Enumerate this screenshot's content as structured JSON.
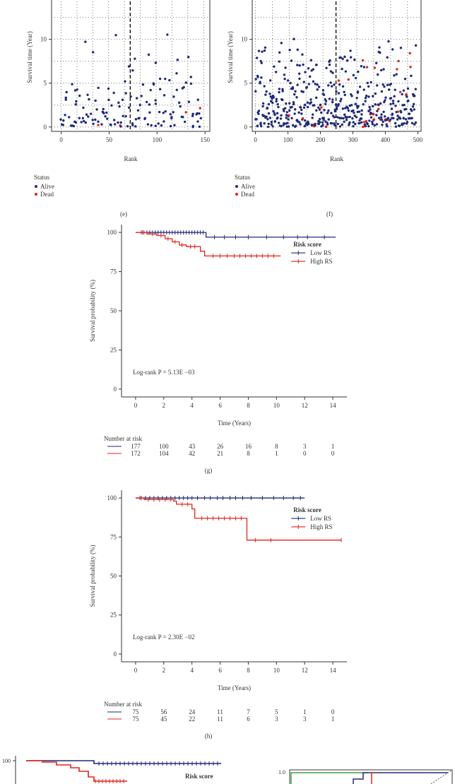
{
  "colors": {
    "low": "#1f2a78",
    "high": "#e0251b",
    "alive": "#1f2a78",
    "dead": "#e0251b",
    "roc_green": "#3aa043"
  },
  "chart_data": [
    {
      "id": "e",
      "type": "scatter",
      "panel_label": "(e)",
      "xlabel": "Rank",
      "ylabel": "Survival time (Year)",
      "xticks": [
        0,
        50,
        100,
        150
      ],
      "yticks": [
        0,
        5,
        10
      ],
      "xlim": [
        -10,
        155
      ],
      "ylim": [
        -0.5,
        14
      ],
      "cutoff_rank": 72,
      "grid": true,
      "legend": {
        "title": "Status",
        "items": [
          "Alive",
          "Dead"
        ]
      },
      "n": 148
    },
    {
      "id": "f",
      "type": "scatter",
      "panel_label": "(f)",
      "xlabel": "Rank",
      "ylabel": "Survival time (Year)",
      "xticks": [
        0,
        100,
        200,
        300,
        400,
        500
      ],
      "yticks": [
        0,
        5,
        10
      ],
      "xlim": [
        -10,
        510
      ],
      "ylim": [
        -0.5,
        14
      ],
      "cutoff_rank": 248,
      "grid": true,
      "legend": {
        "title": "Status",
        "items": [
          "Alive",
          "Dead"
        ]
      },
      "n": 495
    },
    {
      "id": "g",
      "type": "line",
      "panel_label": "(g)",
      "xlabel": "Time (Years)",
      "ylabel": "Survival probability (%)",
      "xticks": [
        0,
        2,
        4,
        6,
        8,
        10,
        12,
        14
      ],
      "yticks": [
        0,
        25,
        50,
        75,
        100
      ],
      "xlim": [
        -1,
        15
      ],
      "ylim": [
        -5,
        105
      ],
      "legend": {
        "title": "Risk score",
        "position": "top-right"
      },
      "pvalue": "Log-rank P = 5.13E −03",
      "series": [
        {
          "name": "Low RS",
          "steps": [
            [
              0,
              100
            ],
            [
              5.0,
              100
            ],
            [
              5.0,
              97
            ],
            [
              14.2,
              97
            ]
          ],
          "censors": [
            0.5,
            0.8,
            1.0,
            1.2,
            1.4,
            1.6,
            1.8,
            2.0,
            2.2,
            2.4,
            2.6,
            2.8,
            3.0,
            3.2,
            3.4,
            3.6,
            3.8,
            4.0,
            4.2,
            4.4,
            4.6,
            4.8,
            5.6,
            6.3,
            7.1,
            8.0,
            9.3,
            10.5,
            11.5,
            12.2,
            13.4
          ]
        },
        {
          "name": "High RS",
          "steps": [
            [
              0,
              100
            ],
            [
              0.8,
              100
            ],
            [
              0.8,
              99
            ],
            [
              1.5,
              99
            ],
            [
              1.5,
              98
            ],
            [
              2.1,
              98
            ],
            [
              2.1,
              96
            ],
            [
              2.6,
              96
            ],
            [
              2.6,
              94
            ],
            [
              3.1,
              94
            ],
            [
              3.1,
              92
            ],
            [
              3.6,
              92
            ],
            [
              3.6,
              91
            ],
            [
              4.6,
              91
            ],
            [
              4.6,
              88
            ],
            [
              4.9,
              88
            ],
            [
              4.9,
              85
            ],
            [
              10.3,
              85
            ]
          ],
          "censors": [
            0.4,
            0.6,
            1.2,
            1.8,
            2.3,
            2.8,
            3.3,
            3.9,
            4.2,
            5.5,
            6.0,
            6.5,
            7.0,
            7.4,
            7.8,
            8.2,
            8.6,
            9.0,
            9.4,
            9.8
          ]
        }
      ],
      "risk_table": {
        "title": "Number at risk",
        "rows": [
          {
            "name": "Low RS",
            "values": [
              "177",
              "100",
              "43",
              "26",
              "16",
              "8",
              "3",
              "1"
            ]
          },
          {
            "name": "High RS",
            "values": [
              "172",
              "104",
              "42",
              "21",
              "8",
              "1",
              "0",
              "0"
            ]
          }
        ]
      }
    },
    {
      "id": "h",
      "type": "line",
      "panel_label": "(h)",
      "xlabel": "Time (Years)",
      "ylabel": "Survival probability (%)",
      "xticks": [
        0,
        2,
        4,
        6,
        8,
        10,
        12,
        14
      ],
      "yticks": [
        0,
        25,
        50,
        75,
        100
      ],
      "xlim": [
        -1,
        15
      ],
      "ylim": [
        -5,
        105
      ],
      "legend": {
        "title": "Risk score",
        "position": "top-right"
      },
      "pvalue": "Log-rank P = 2.30E −02",
      "series": [
        {
          "name": "Low RS",
          "steps": [
            [
              0,
              100
            ],
            [
              12.0,
              100
            ]
          ],
          "censors": [
            0.4,
            0.7,
            1.0,
            1.3,
            1.6,
            1.9,
            2.2,
            2.5,
            2.8,
            3.1,
            3.4,
            3.7,
            4.0,
            4.4,
            4.9,
            5.3,
            5.8,
            6.2,
            6.7,
            7.1,
            7.6,
            8.2,
            9.0,
            9.8,
            10.5,
            11.2,
            11.7
          ]
        },
        {
          "name": "High RS",
          "steps": [
            [
              0,
              100
            ],
            [
              0.6,
              100
            ],
            [
              0.6,
              99
            ],
            [
              2.7,
              99
            ],
            [
              2.7,
              98
            ],
            [
              2.9,
              98
            ],
            [
              2.9,
              96
            ],
            [
              4.0,
              96
            ],
            [
              4.0,
              93
            ],
            [
              4.2,
              93
            ],
            [
              4.2,
              87
            ],
            [
              7.9,
              87
            ],
            [
              7.9,
              73
            ],
            [
              14.6,
              73
            ]
          ],
          "censors": [
            0.3,
            0.9,
            1.3,
            1.7,
            2.1,
            2.5,
            3.3,
            3.7,
            4.7,
            5.1,
            5.5,
            5.9,
            6.3,
            6.7,
            7.1,
            7.5,
            8.5,
            9.6,
            14.6
          ]
        }
      ],
      "risk_table": {
        "title": "Number at risk",
        "rows": [
          {
            "name": "Low RS",
            "values": [
              "75",
              "56",
              "24",
              "11",
              "7",
              "5",
              "1",
              "0"
            ]
          },
          {
            "name": "High RS",
            "values": [
              "75",
              "45",
              "22",
              "11",
              "6",
              "3",
              "3",
              "1"
            ]
          }
        ]
      }
    },
    {
      "id": "i",
      "type": "line",
      "partial": true,
      "yticks": [
        100
      ],
      "legend": {
        "title": "Risk score"
      }
    },
    {
      "id": "j",
      "type": "line",
      "partial": true,
      "yticks": [
        1.0
      ]
    }
  ]
}
